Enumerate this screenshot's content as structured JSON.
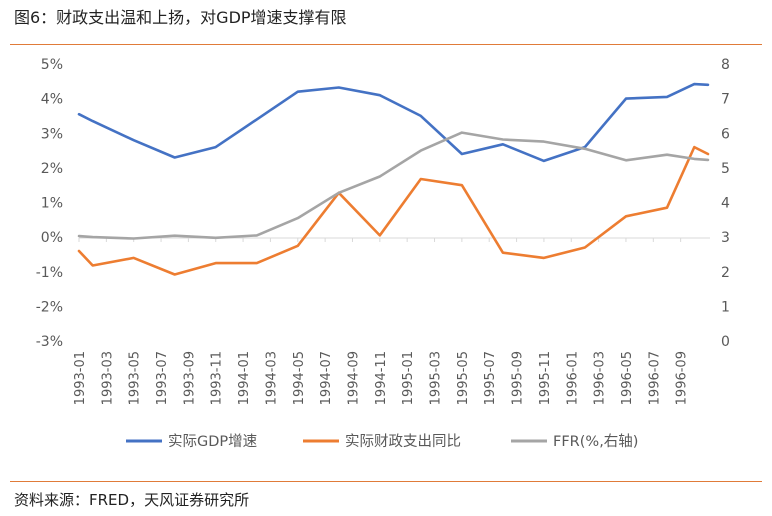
{
  "title": "图6：财政支出温和上扬，对GDP增速支撑有限",
  "source": "资料来源：FRED，天风证券研究所",
  "colors": {
    "gdp": "#4472c4",
    "fiscal": "#ed7d31",
    "ffr": "#a5a5a5",
    "rule": "#e07b39"
  },
  "chart_data": {
    "type": "line",
    "title": "",
    "xlabel": "",
    "ylabel": "",
    "x_tick_labels": [
      "1993-01",
      "1993-03",
      "1993-05",
      "1993-07",
      "1993-09",
      "1993-11",
      "1994-01",
      "1994-03",
      "1994-05",
      "1994-07",
      "1994-09",
      "1994-11",
      "1995-01",
      "1995-03",
      "1995-05",
      "1995-07",
      "1995-09",
      "1995-11",
      "1996-01",
      "1996-03",
      "1996-05",
      "1996-07",
      "1996-09"
    ],
    "ylim_left": [
      -3,
      5
    ],
    "yticks_left": [
      "-3%",
      "-2%",
      "-1%",
      "0%",
      "1%",
      "2%",
      "3%",
      "4%",
      "5%"
    ],
    "ylim_right": [
      0,
      8
    ],
    "yticks_right": [
      "0",
      "1",
      "2",
      "3",
      "4",
      "5",
      "6",
      "7",
      "8"
    ],
    "grid": false,
    "legend_position": "bottom",
    "series": [
      {
        "name": "实际GDP增速",
        "axis": "left",
        "x": [
          "1993-01",
          "1993-02",
          "1993-05",
          "1993-08",
          "1993-11",
          "1994-02",
          "1994-05",
          "1994-08",
          "1994-11",
          "1995-02",
          "1995-05",
          "1995-08",
          "1995-11",
          "1996-02",
          "1996-05",
          "1996-08",
          "1996-10",
          "1996-11"
        ],
        "values": [
          3.55,
          3.35,
          2.8,
          2.3,
          2.6,
          3.4,
          4.2,
          4.32,
          4.1,
          3.5,
          2.4,
          2.68,
          2.2,
          2.6,
          4.0,
          4.05,
          4.42,
          4.4
        ]
      },
      {
        "name": "实际财政支出同比",
        "axis": "left",
        "x": [
          "1993-01",
          "1993-02",
          "1993-05",
          "1993-08",
          "1993-11",
          "1994-02",
          "1994-05",
          "1994-08",
          "1994-11",
          "1995-02",
          "1995-05",
          "1995-08",
          "1995-11",
          "1996-02",
          "1996-05",
          "1996-08",
          "1996-10",
          "1996-11"
        ],
        "values": [
          -0.4,
          -0.82,
          -0.6,
          -1.08,
          -0.75,
          -0.75,
          -0.25,
          1.28,
          0.05,
          1.68,
          1.5,
          -0.45,
          -0.6,
          -0.3,
          0.6,
          0.85,
          2.6,
          2.4
        ]
      },
      {
        "name": "FFR(%,右轴)",
        "axis": "right",
        "x": [
          "1993-01",
          "1993-02",
          "1993-05",
          "1993-08",
          "1993-11",
          "1994-02",
          "1994-05",
          "1994-08",
          "1994-11",
          "1995-02",
          "1995-05",
          "1995-08",
          "1995-11",
          "1996-02",
          "1996-05",
          "1996-08",
          "1996-10",
          "1996-11"
        ],
        "values": [
          3.03,
          3.0,
          2.96,
          3.04,
          2.98,
          3.05,
          3.55,
          4.28,
          4.75,
          5.5,
          6.02,
          5.82,
          5.76,
          5.55,
          5.22,
          5.38,
          5.26,
          5.23
        ]
      }
    ]
  }
}
